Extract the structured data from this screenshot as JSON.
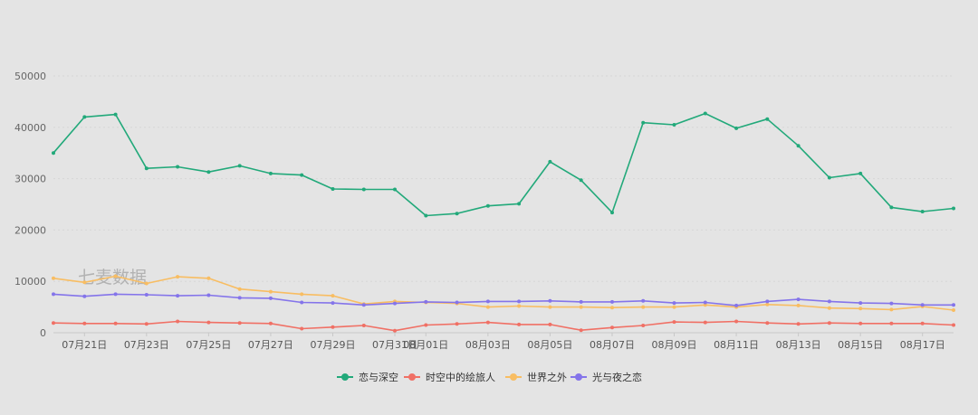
{
  "watermark": "七麦数据",
  "chart_data": {
    "type": "line",
    "title": "",
    "xlabel": "",
    "ylabel": "",
    "ylim": [
      0,
      50000
    ],
    "y_ticks": [
      "0",
      "10000",
      "20000",
      "30000",
      "40000",
      "50000"
    ],
    "x_tick_labels": [
      "07月21日",
      "07月23日",
      "07月25日",
      "07月27日",
      "07月29日",
      "07月31日",
      "08月01日",
      "08月03日",
      "08月05日",
      "08月07日",
      "08月09日",
      "08月11日",
      "08月13日",
      "08月15日",
      "08月17日"
    ],
    "categories": [
      "07月20日",
      "07月21日",
      "07月22日",
      "07月23日",
      "07月24日",
      "07月25日",
      "07月26日",
      "07月27日",
      "07月28日",
      "07月29日",
      "07月30日",
      "07月31日",
      "08月01日",
      "08月02日",
      "08月03日",
      "08月04日",
      "08月05日",
      "08月06日",
      "08月07日",
      "08月08日",
      "08月09日",
      "08月10日",
      "08月11日",
      "08月12日",
      "08月13日",
      "08月14日",
      "08月15日",
      "08月16日",
      "08月17日",
      "08月18日"
    ],
    "grid": true,
    "legend_position": "bottom",
    "series": [
      {
        "name": "恋与深空",
        "color": "#22a97a",
        "values": [
          35000,
          42000,
          42500,
          32000,
          32300,
          31300,
          32500,
          31000,
          30700,
          28000,
          27900,
          27900,
          22800,
          23200,
          24700,
          25100,
          33300,
          29700,
          23400,
          40900,
          40500,
          42700,
          39800,
          41600,
          36400,
          30200,
          31000,
          24400,
          23600,
          24200
        ]
      },
      {
        "name": "时空中的绘旅人",
        "color": "#f07065",
        "values": [
          1900,
          1800,
          1800,
          1700,
          2200,
          2000,
          1900,
          1800,
          800,
          1100,
          1400,
          400,
          1500,
          1700,
          2000,
          1600,
          1600,
          500,
          1000,
          1400,
          2100,
          2000,
          2200,
          1900,
          1700,
          1900,
          1800,
          1800,
          1800,
          1500
        ]
      },
      {
        "name": "世界之外",
        "color": "#f8bd62",
        "values": [
          10600,
          9800,
          11000,
          9600,
          10900,
          10600,
          8500,
          8000,
          7500,
          7200,
          5600,
          6100,
          5900,
          5700,
          5000,
          5200,
          5000,
          5000,
          4900,
          5000,
          5000,
          5400,
          5000,
          5500,
          5300,
          4800,
          4700,
          4500,
          5100,
          4400
        ]
      },
      {
        "name": "光与夜之恋",
        "color": "#8474ea",
        "values": [
          7500,
          7100,
          7500,
          7400,
          7200,
          7300,
          6800,
          6700,
          5900,
          5800,
          5400,
          5700,
          6000,
          5900,
          6100,
          6100,
          6200,
          6000,
          6000,
          6200,
          5800,
          5900,
          5300,
          6100,
          6500,
          6100,
          5800,
          5700,
          5400,
          5400
        ]
      }
    ]
  }
}
